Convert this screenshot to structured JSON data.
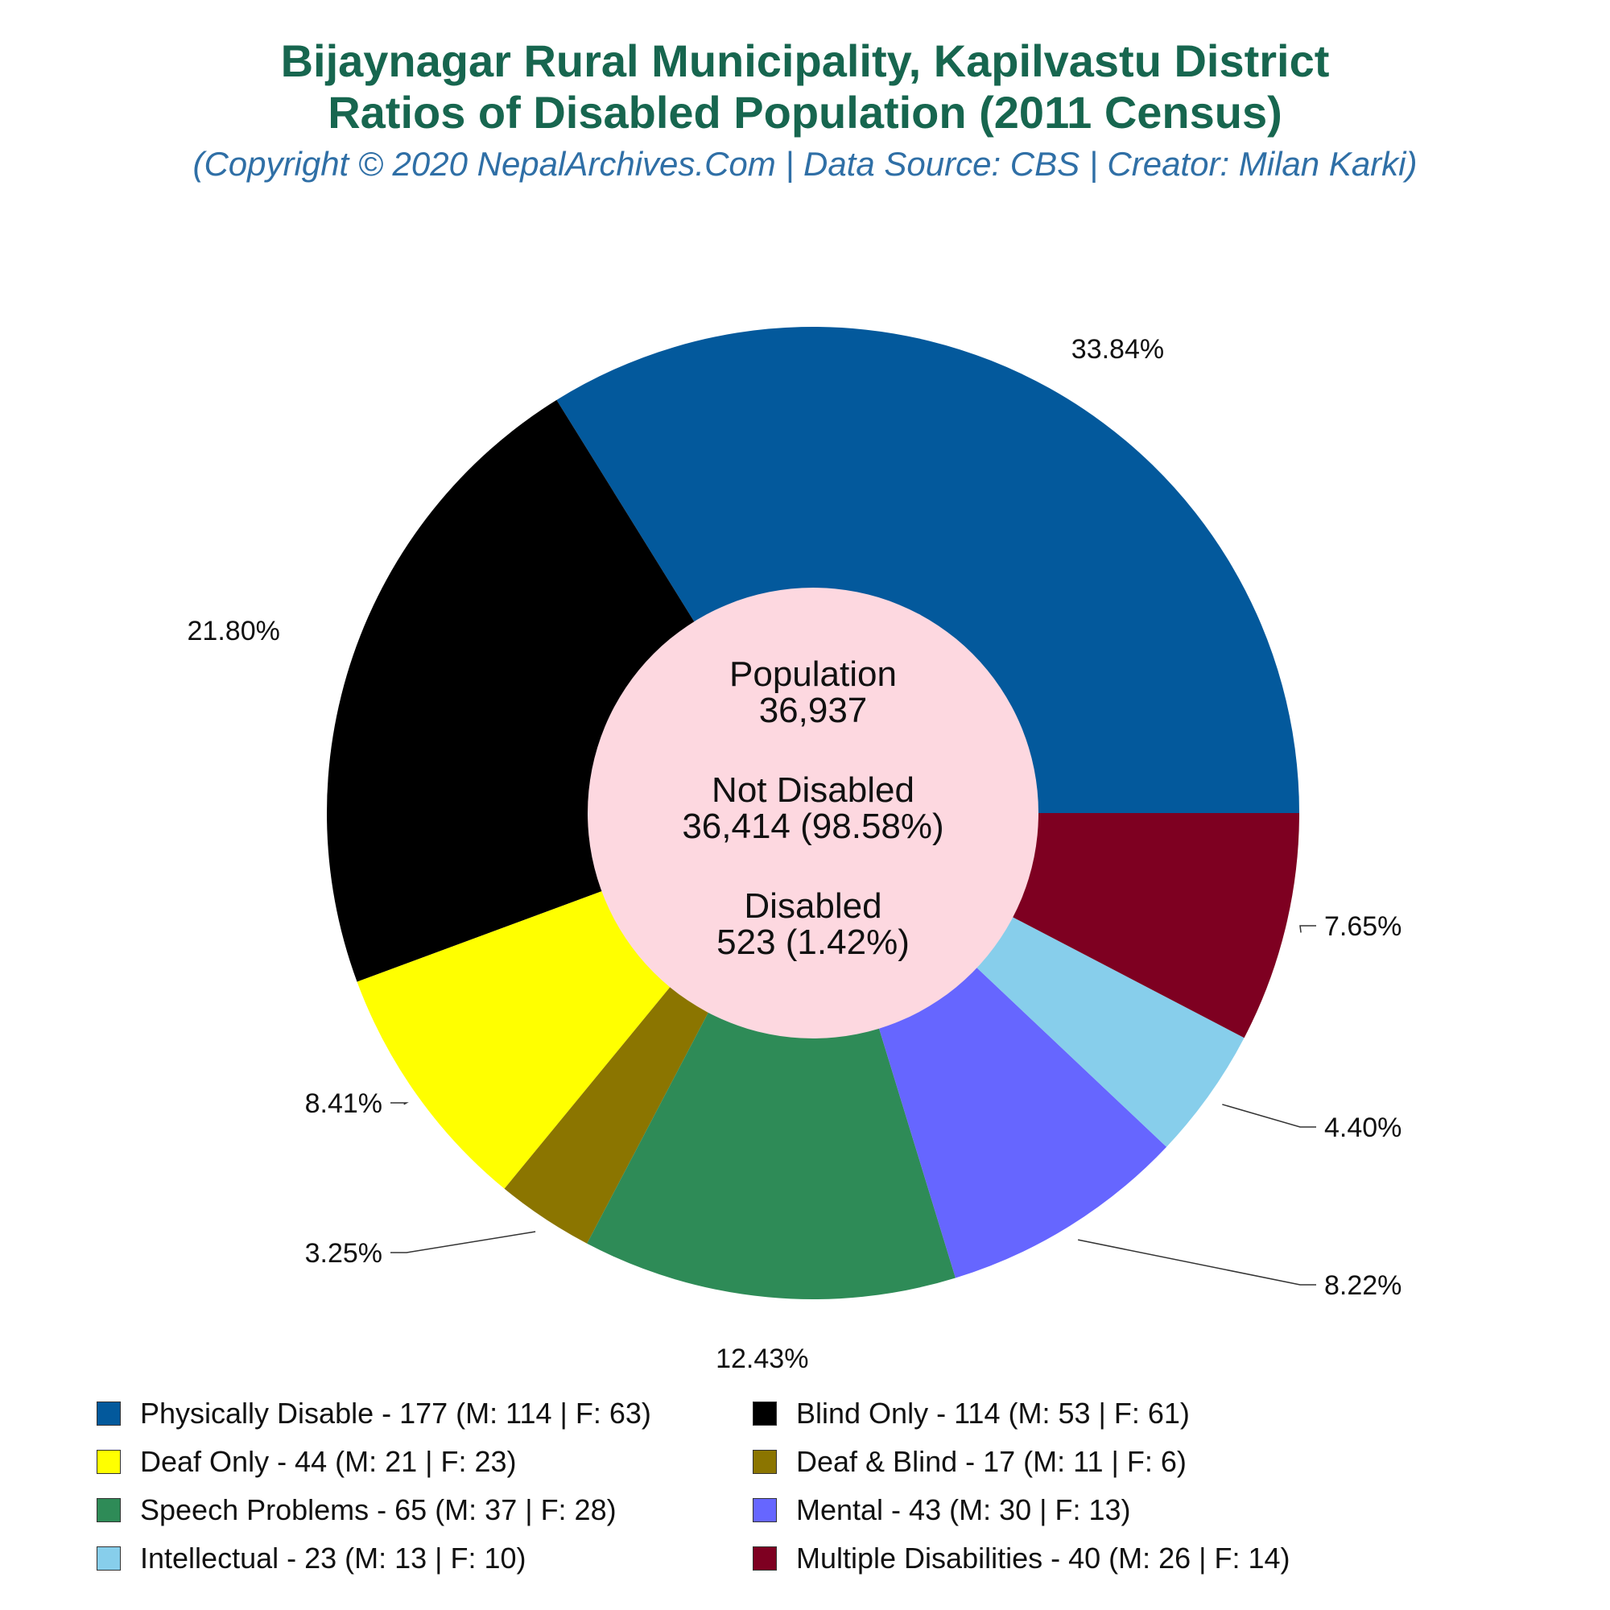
{
  "chart_data": {
    "type": "pie",
    "title": "Bijaynagar Rural Municipality, Kapilvastu District",
    "subtitle_line2": "Ratios of Disabled Population (2011 Census)",
    "credit": "(Copyright © 2020 NepalArchives.Com | Data Source: CBS | Creator: Milan Karki)",
    "center": {
      "population_label": "Population",
      "population_value": "36,937",
      "not_disabled_label": "Not Disabled",
      "not_disabled_value": "36,414 (98.58%)",
      "disabled_label": "Disabled",
      "disabled_value": "523 (1.42%)"
    },
    "slices": [
      {
        "name": "Physically Disable",
        "value": 177,
        "male": 114,
        "female": 63,
        "percent_label": "33.84%",
        "color": "#03599c",
        "legend": "Physically Disable - 177 (M: 114 | F: 63)"
      },
      {
        "name": "Multiple Disabilities",
        "value": 40,
        "male": 26,
        "female": 14,
        "percent_label": "7.65%",
        "color": "#7e0021",
        "legend": "Multiple Disabilities - 40 (M: 26 | F: 14)"
      },
      {
        "name": "Intellectual",
        "value": 23,
        "male": 13,
        "female": 10,
        "percent_label": "4.40%",
        "color": "#87ceeb",
        "legend": "Intellectual - 23 (M: 13 | F: 10)"
      },
      {
        "name": "Mental",
        "value": 43,
        "male": 30,
        "female": 13,
        "percent_label": "8.22%",
        "color": "#6666ff",
        "legend": "Mental - 43 (M: 30 | F: 13)"
      },
      {
        "name": "Speech Problems",
        "value": 65,
        "male": 37,
        "female": 28,
        "percent_label": "12.43%",
        "color": "#2e8b57",
        "legend": "Speech Problems - 65 (M: 37 | F: 28)"
      },
      {
        "name": "Deaf & Blind",
        "value": 17,
        "male": 11,
        "female": 6,
        "percent_label": "3.25%",
        "color": "#8b7500",
        "legend": "Deaf & Blind - 17 (M: 11 | F: 6)"
      },
      {
        "name": "Deaf Only",
        "value": 44,
        "male": 21,
        "female": 23,
        "percent_label": "8.41%",
        "color": "#ffff00",
        "legend": "Deaf Only - 44 (M: 21 | F: 23)"
      },
      {
        "name": "Blind Only",
        "value": 114,
        "male": 53,
        "female": 61,
        "percent_label": "21.80%",
        "color": "#000000",
        "legend": "Blind Only - 114 (M: 53 | F: 61)"
      }
    ],
    "legend_order": [
      "Physically Disable",
      "Blind Only",
      "Deaf Only",
      "Deaf & Blind",
      "Speech Problems",
      "Mental",
      "Intellectual",
      "Multiple Disabilities"
    ],
    "hole_color": "#fdd8e0"
  }
}
